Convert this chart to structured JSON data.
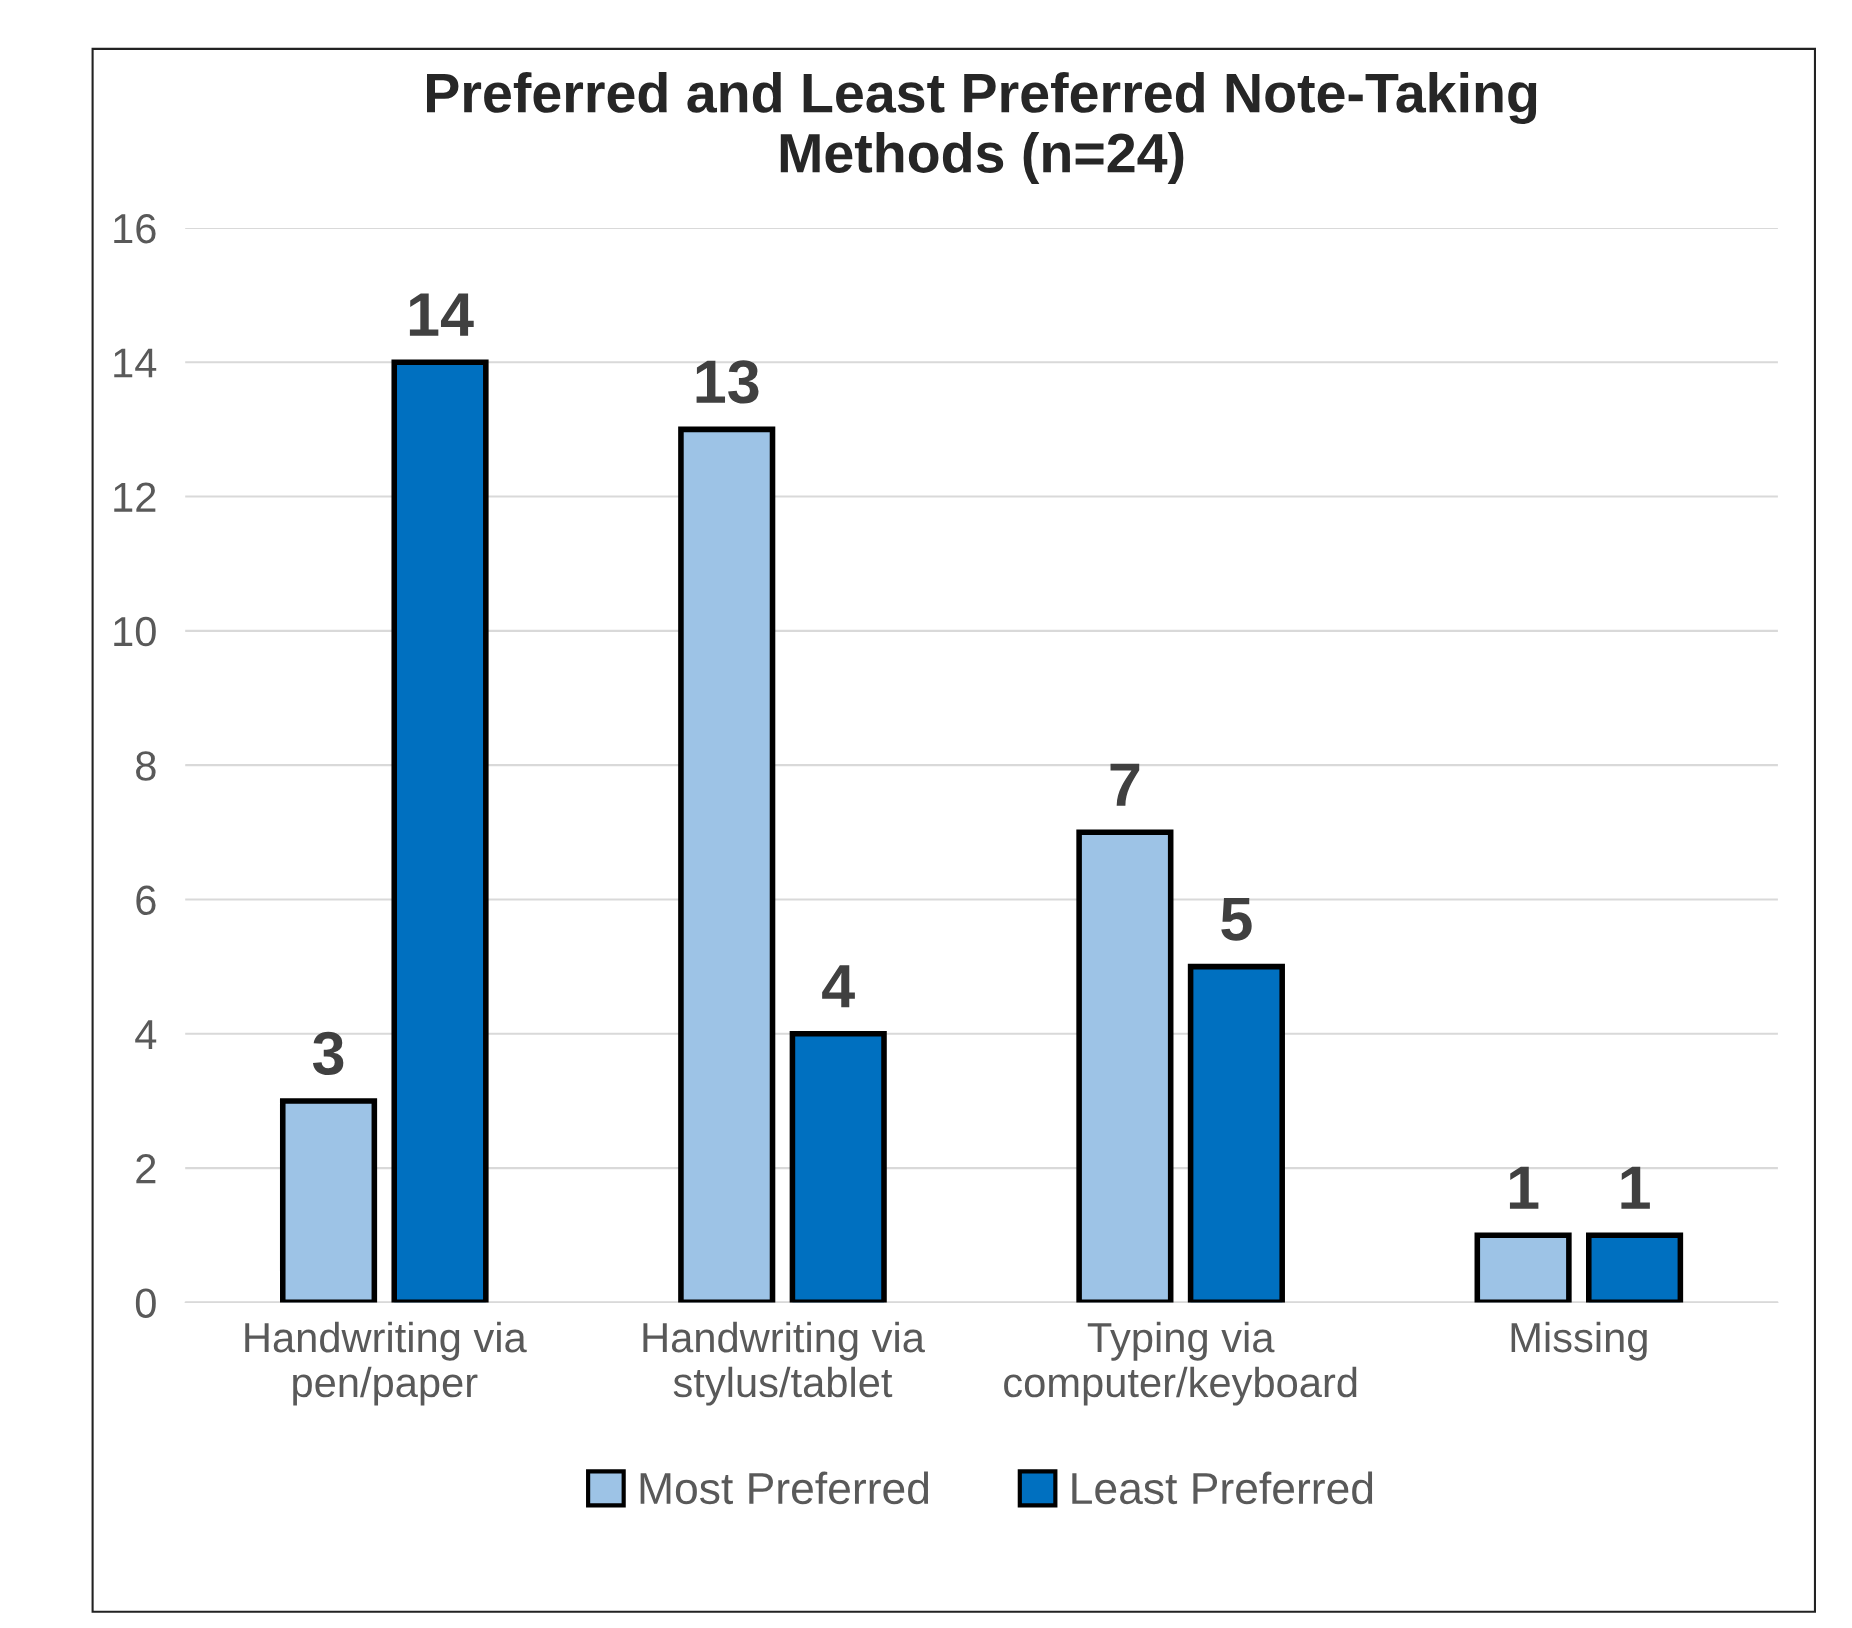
{
  "chart_data": {
    "type": "bar",
    "title": "Preferred and Least Preferred Note-Taking\nMethods (n=24)",
    "categories": [
      "Handwriting via\npen/paper",
      "Handwriting via\nstylus/tablet",
      "Typing via\ncomputer/keyboard",
      "Missing"
    ],
    "series": [
      {
        "name": "Most Preferred",
        "color": "#9dc3e6",
        "values": [
          3,
          13,
          7,
          1
        ]
      },
      {
        "name": "Least Preferred",
        "color": "#0070c0",
        "values": [
          14,
          4,
          5,
          1
        ]
      }
    ],
    "ylim": [
      0,
      16
    ],
    "yticks": [
      0,
      2,
      4,
      6,
      8,
      10,
      12,
      14,
      16
    ],
    "grid": "y",
    "legend": "bottom",
    "data_labels": true
  }
}
